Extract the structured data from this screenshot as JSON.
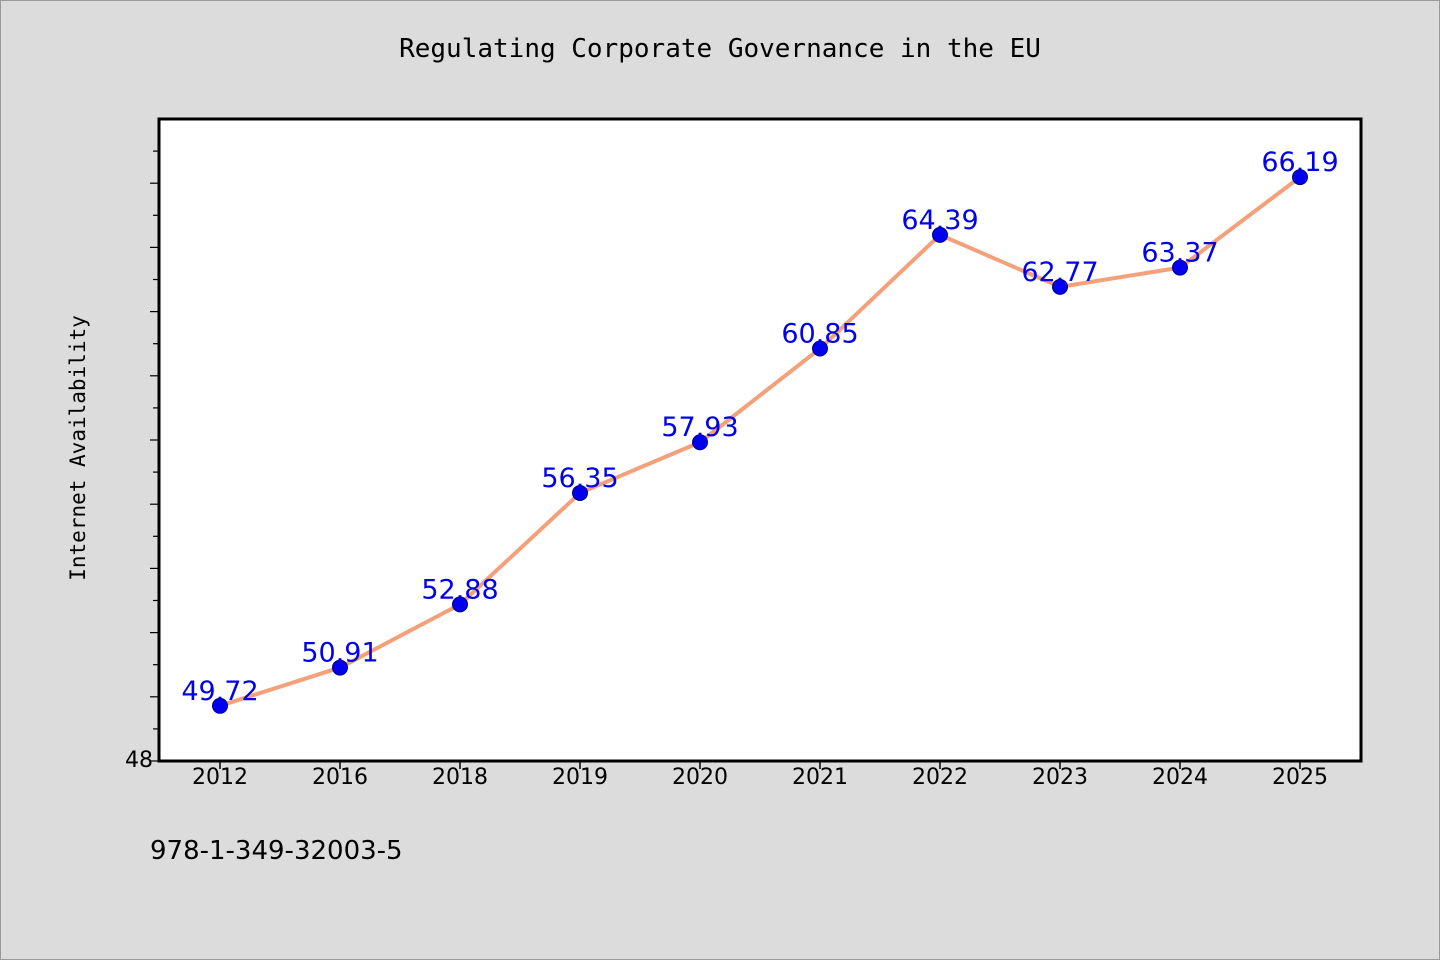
{
  "chart_data": {
    "type": "line",
    "title": "Regulating Corporate Governance in the EU",
    "xlabel": "",
    "ylabel": "Internet Availability",
    "categories": [
      "2012",
      "2016",
      "2018",
      "2019",
      "2020",
      "2021",
      "2022",
      "2023",
      "2024",
      "2025"
    ],
    "series": [
      {
        "values": [
          49.72,
          50.91,
          52.88,
          56.35,
          57.93,
          60.85,
          64.39,
          62.77,
          63.37,
          66.19
        ],
        "line_color": "#f4a07a",
        "marker_color": "#0000ee"
      }
    ],
    "ylim": [
      48,
      68
    ],
    "y_tick_labels": [
      "48"
    ],
    "grid": false,
    "data_labels": true
  },
  "footer": {
    "isbn": "978-1-349-32003-5"
  },
  "colors": {
    "background": "#dcdcdc",
    "plot_background": "#ffffff",
    "data_label": "#0000ee"
  }
}
